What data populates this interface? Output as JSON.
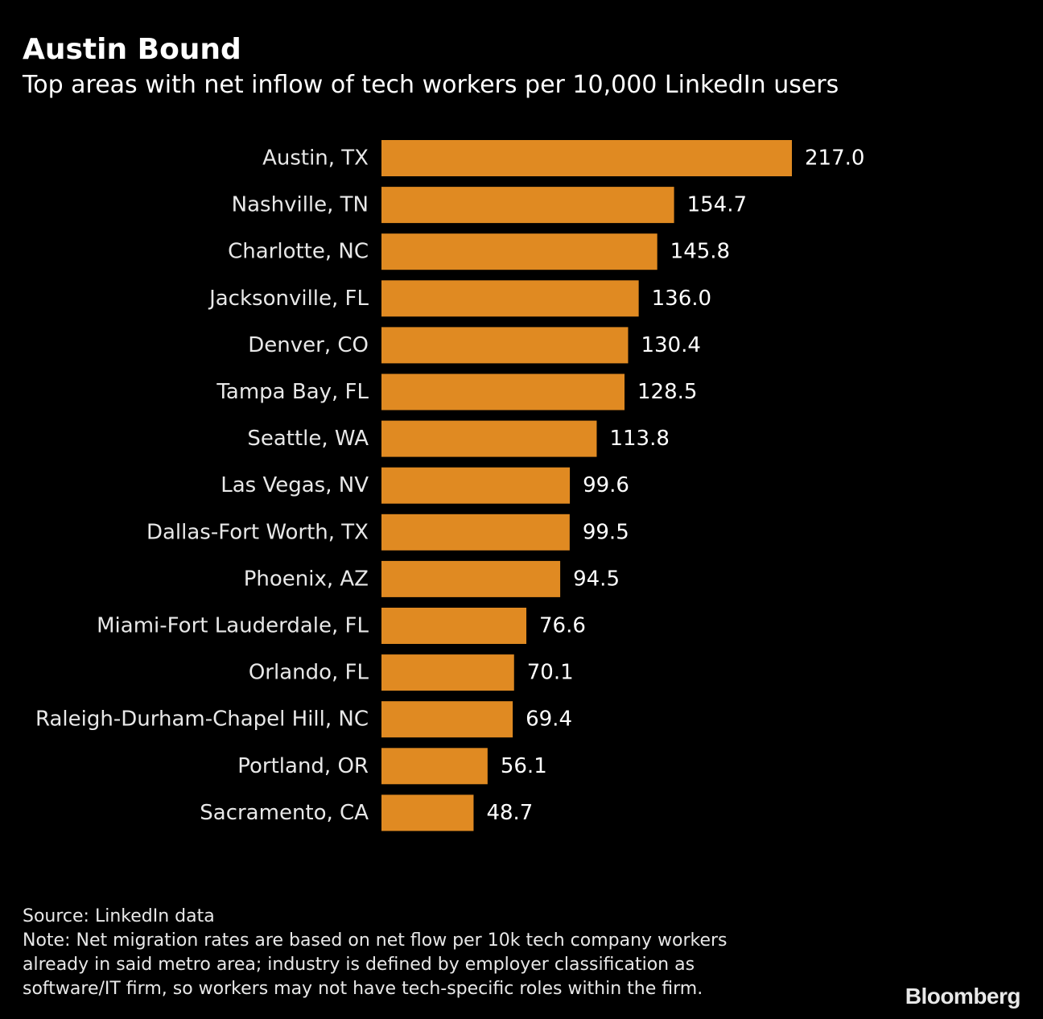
{
  "title": "Austin Bound",
  "subtitle": "Top areas with net inflow of tech workers per 10,000 LinkedIn users",
  "chart_data": {
    "type": "bar",
    "orientation": "horizontal",
    "categories": [
      "Austin, TX",
      "Nashville, TN",
      "Charlotte, NC",
      "Jacksonville, FL",
      "Denver, CO",
      "Tampa Bay, FL",
      "Seattle, WA",
      "Las Vegas, NV",
      "Dallas-Fort Worth, TX",
      "Phoenix, AZ",
      "Miami-Fort Lauderdale, FL",
      "Orlando, FL",
      "Raleigh-Durham-Chapel Hill, NC",
      "Portland, OR",
      "Sacramento, CA"
    ],
    "values": [
      217.0,
      154.7,
      145.8,
      136.0,
      130.4,
      128.5,
      113.8,
      99.6,
      99.5,
      94.5,
      76.6,
      70.1,
      69.4,
      56.1,
      48.7
    ],
    "value_labels": [
      "217.0",
      "154.7",
      "145.8",
      "136.0",
      "130.4",
      "128.5",
      "113.8",
      "99.6",
      "99.5",
      "94.5",
      "76.6",
      "70.1",
      "69.4",
      "56.1",
      "48.7"
    ],
    "xlim": [
      0,
      217.0
    ],
    "grid": false,
    "legend": "none",
    "bar_color": "#e08a22",
    "label_color": "#e8e8e8",
    "value_color": "#ffffff"
  },
  "footer": {
    "source": "Source: LinkedIn data",
    "note_lines": [
      "Note: Net migration rates are based on net flow per 10k tech company workers",
      "already in said metro area; industry is defined by employer classification as",
      "software/IT firm, so workers may not have tech-specific roles within the firm."
    ]
  },
  "logo": "Bloomberg",
  "colors": {
    "background": "#000000",
    "text": "#ffffff",
    "accent": "#e08a22"
  }
}
